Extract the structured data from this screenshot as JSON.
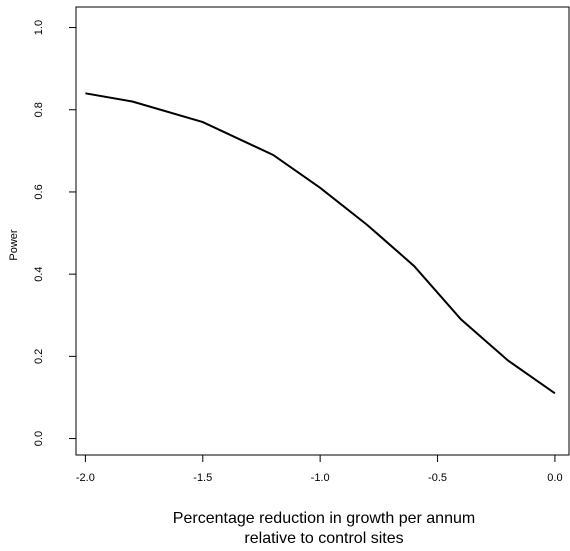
{
  "chart_data": {
    "type": "line",
    "xlabel": [
      "Percentage reduction in growth per annum",
      "relative to control sites"
    ],
    "ylabel": "Power",
    "x": [
      -2.0,
      -1.8,
      -1.5,
      -1.2,
      -1.0,
      -0.8,
      -0.6,
      -0.4,
      -0.2,
      0.0
    ],
    "series": [
      {
        "color": "#000000",
        "values": [
          0.84,
          0.82,
          0.77,
          0.69,
          0.61,
          0.52,
          0.42,
          0.29,
          0.19,
          0.11
        ]
      }
    ],
    "xlim": [
      -2.04,
      0.06
    ],
    "ylim": [
      -0.04,
      1.05
    ],
    "xticks": [
      {
        "value": -2.0,
        "label": "-2.0"
      },
      -1.5,
      {
        "value": -1.0,
        "label": "-1.0"
      },
      -0.5,
      {
        "value": 0.0,
        "label": "0.0"
      }
    ],
    "yticks": [
      {
        "value": 0.0,
        "label": "0.0"
      },
      0.2,
      0.4,
      0.6,
      0.8,
      {
        "value": 1.0,
        "label": "1.0"
      }
    ],
    "grid": false
  }
}
